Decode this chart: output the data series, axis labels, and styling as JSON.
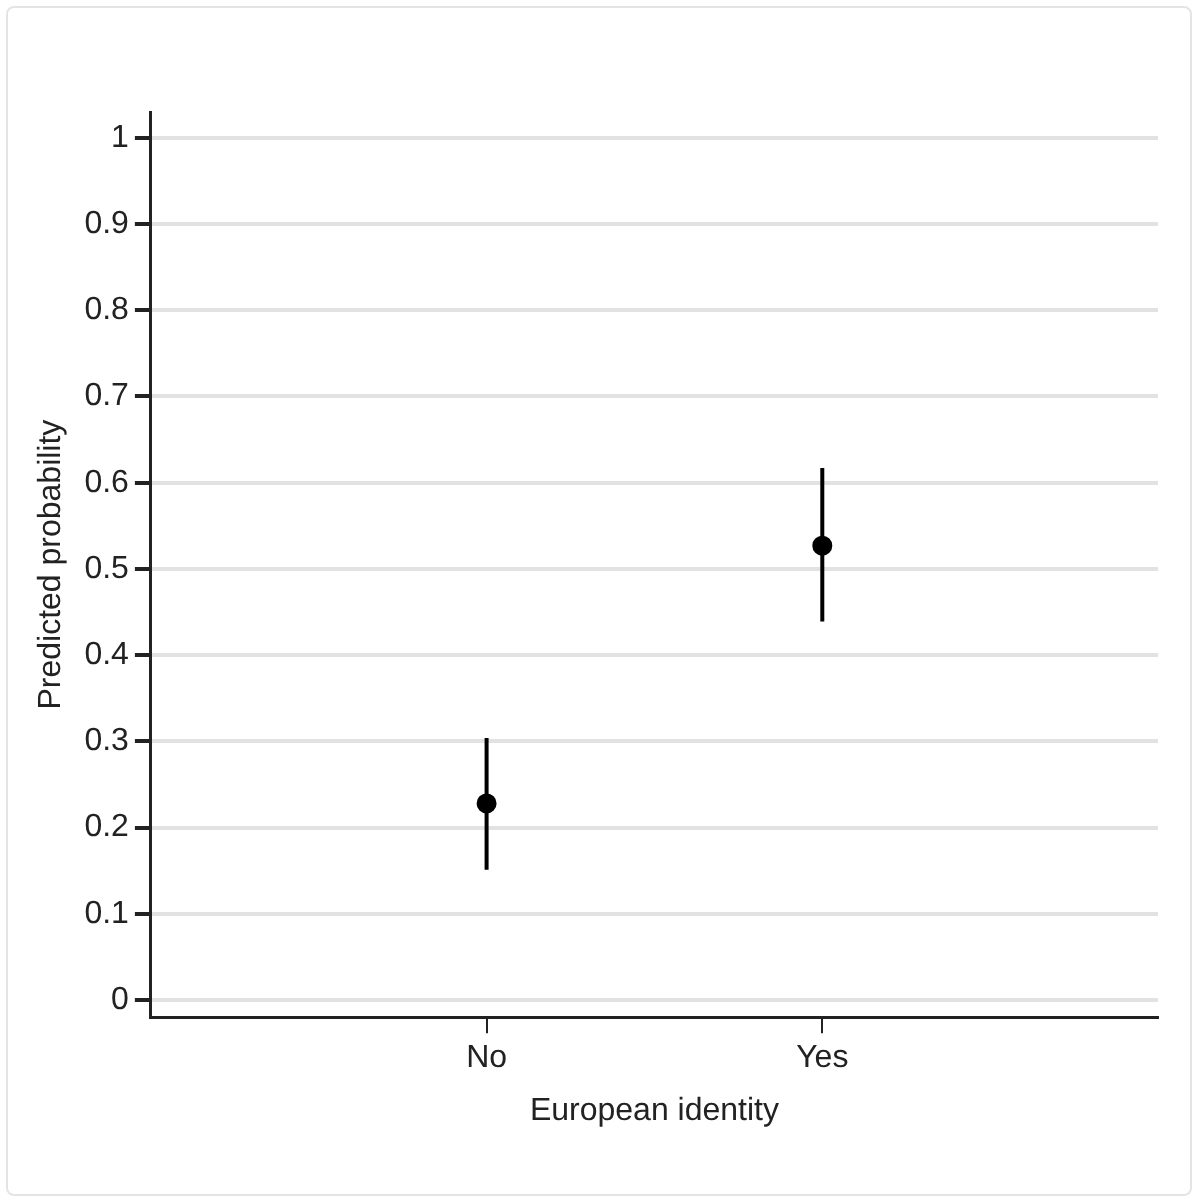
{
  "chart_data": {
    "type": "scatter",
    "xlabel": "European identity",
    "ylabel": "Predicted probability",
    "categories": [
      "No",
      "Yes"
    ],
    "series": [
      {
        "color": "#000000",
        "values": [
          0.228,
          0.527
        ],
        "errors": [
          [
            0.151,
            0.304
          ],
          [
            0.439,
            0.617
          ]
        ]
      }
    ],
    "ylim": [
      -0.02,
      1.03
    ],
    "yticks": [
      0,
      0.1,
      0.2,
      0.3,
      0.4,
      0.5,
      0.6,
      0.7,
      0.8,
      0.9,
      1
    ],
    "grid": "y",
    "legend": false,
    "marker": "circle"
  }
}
